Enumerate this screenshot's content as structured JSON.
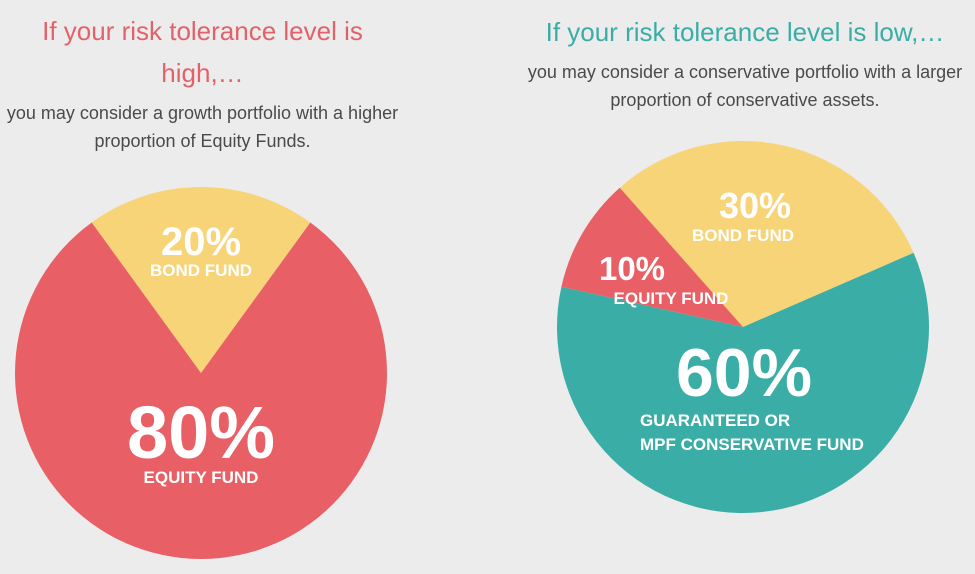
{
  "chart_data": [
    {
      "type": "pie",
      "title": "If your risk tolerance level is high,…",
      "subtitle": "you may consider a growth portfolio with a higher proportion of Equity Funds.",
      "slices": [
        {
          "label": "BOND FUND",
          "value": 20,
          "value_text": "20%",
          "color": "#f8d478"
        },
        {
          "label": "EQUITY FUND",
          "value": 80,
          "value_text": "80%",
          "color": "#e86066"
        }
      ]
    },
    {
      "type": "pie",
      "title": "If your risk tolerance level is low,…",
      "subtitle": "you may consider a conservative portfolio with a larger proportion of conservative assets.",
      "slices": [
        {
          "label": "BOND FUND",
          "value": 30,
          "value_text": "30%",
          "color": "#f8d478"
        },
        {
          "label": "GUARANTEED OR MPF CONSERVATIVE FUND",
          "label_lines": [
            "GUARANTEED OR",
            "MPF CONSERVATIVE FUND"
          ],
          "value": 60,
          "value_text": "60%",
          "color": "#3aada6"
        },
        {
          "label": "EQUITY FUND",
          "value": 10,
          "value_text": "10%",
          "color": "#e86066"
        }
      ]
    }
  ]
}
